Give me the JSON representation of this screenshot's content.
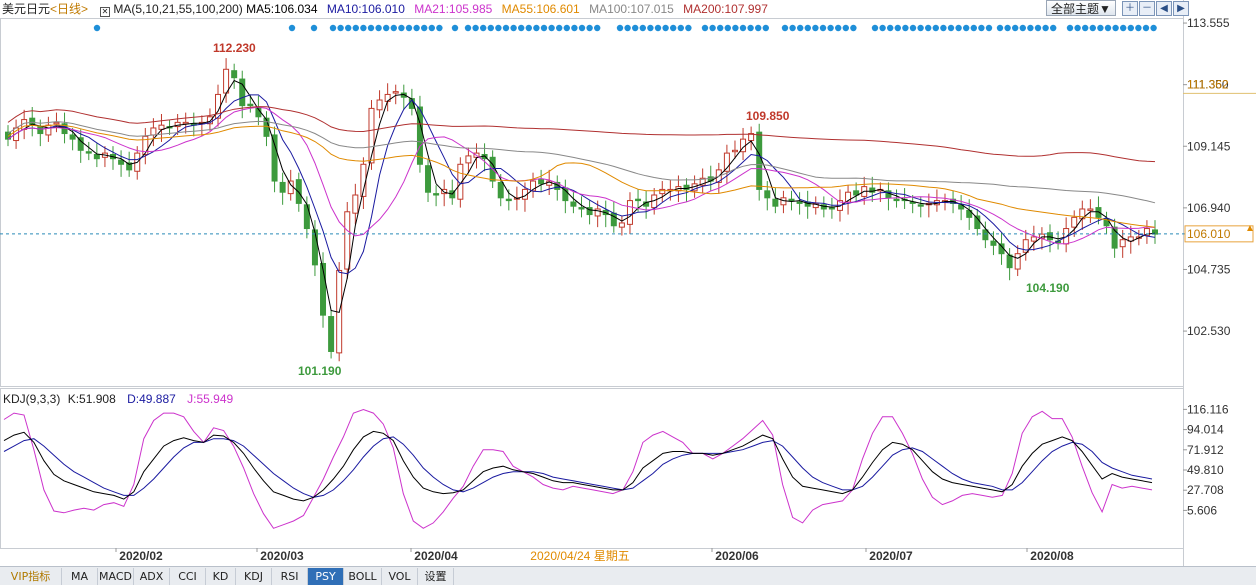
{
  "header": {
    "symbol": "美元日元",
    "period": "<日线>",
    "ma_label": "MA(5,10,21,55,100,200)",
    "ma5": "MA5:106.034",
    "ma10": "MA10:106.010",
    "ma21": "MA21:105.985",
    "ma55": "MA55:106.601",
    "ma100": "MA100:107.015",
    "ma200": "MA200:107.997",
    "theme_button": "全部主题▼",
    "tool_icons": [
      "zoom-in-icon",
      "zoom-out-icon",
      "pan-left-icon",
      "pan-right-icon"
    ]
  },
  "kdj_header": {
    "label": "KDJ(9,3,3)",
    "k": "K:51.908",
    "d": "D:49.887",
    "j": "J:55.949"
  },
  "colors": {
    "up": "#c0392b",
    "down": "#3d9a3d",
    "ma5": "#000000",
    "ma10": "#000000",
    "ma21": "#cc33cc",
    "ma55": "#e08a00",
    "ma100": "#888888",
    "ma200": "#b03030",
    "dots": "#1f8fd8",
    "price_tag": "#e8a33d",
    "crosshair": "#2a8ab8"
  },
  "tabs": [
    {
      "label": "VIP指标",
      "active": false
    },
    {
      "label": "MA",
      "active": false
    },
    {
      "label": "MACD",
      "active": false
    },
    {
      "label": "ADX",
      "active": false
    },
    {
      "label": "CCI",
      "active": false
    },
    {
      "label": "KD",
      "active": false
    },
    {
      "label": "KDJ",
      "active": false
    },
    {
      "label": "RSI",
      "active": false
    },
    {
      "label": "PSY",
      "active": true
    },
    {
      "label": "BOLL",
      "active": false
    },
    {
      "label": "VOL",
      "active": false
    },
    {
      "label": "设置",
      "active": false
    }
  ],
  "chart_data": [
    {
      "type": "candlestick",
      "title": "美元日元 日线",
      "y_ticks": [
        102.53,
        104.735,
        106.94,
        109.145,
        111.35,
        113.555
      ],
      "ylim": [
        100.6,
        113.7
      ],
      "x_ticks": [
        "2020/02",
        "2020/03",
        "2020/04",
        "2020/06",
        "2020/07",
        "2020/08"
      ],
      "crosshair_label": "2020/04/24 星期五",
      "current_price": "106.010",
      "price_tag_111": "111.362",
      "annotations": [
        {
          "text": "112.230",
          "value": 112.23,
          "kind": "high"
        },
        {
          "text": "101.190",
          "value": 101.19,
          "kind": "low"
        },
        {
          "text": "109.850",
          "value": 109.85,
          "kind": "high"
        },
        {
          "text": "104.190",
          "value": 104.19,
          "kind": "low"
        }
      ],
      "series": [
        {
          "name": "MA5"
        },
        {
          "name": "MA10"
        },
        {
          "name": "MA21"
        },
        {
          "name": "MA55"
        },
        {
          "name": "MA100"
        },
        {
          "name": "MA200"
        }
      ],
      "closes": [
        109.4,
        109.8,
        110.1,
        109.9,
        109.6,
        109.9,
        110.0,
        109.6,
        109.4,
        109.0,
        108.9,
        108.7,
        108.9,
        108.7,
        108.5,
        108.3,
        108.9,
        109.5,
        109.8,
        109.9,
        109.8,
        110.0,
        110.0,
        109.9,
        110.0,
        110.2,
        111.0,
        111.9,
        111.6,
        110.6,
        110.6,
        110.2,
        109.5,
        107.9,
        107.5,
        107.9,
        107.1,
        106.2,
        104.9,
        103.1,
        101.8,
        104.7,
        106.8,
        107.4,
        108.5,
        110.5,
        110.8,
        111.0,
        111.1,
        110.9,
        110.5,
        108.5,
        107.5,
        107.4,
        107.6,
        107.3,
        108.5,
        108.8,
        108.9,
        108.7,
        107.9,
        107.3,
        107.2,
        107.3,
        107.6,
        107.9,
        107.8,
        107.9,
        107.6,
        107.2,
        107.0,
        106.9,
        106.7,
        106.9,
        106.7,
        106.3,
        106.4,
        107.2,
        107.2,
        107.0,
        107.4,
        107.6,
        107.6,
        107.7,
        107.6,
        107.8,
        108.0,
        107.9,
        108.3,
        108.9,
        109.0,
        109.4,
        109.6,
        107.6,
        107.3,
        107.0,
        107.3,
        107.2,
        107.1,
        107.0,
        107.1,
        106.9,
        106.9,
        107.2,
        107.5,
        107.4,
        107.7,
        107.5,
        107.6,
        107.3,
        107.2,
        107.2,
        107.1,
        107.0,
        107.1,
        107.2,
        107.2,
        107.1,
        106.9,
        106.6,
        106.2,
        105.8,
        105.6,
        105.3,
        104.8,
        105.3,
        105.8,
        105.9,
        106.0,
        105.8,
        105.7,
        106.2,
        106.6,
        106.9,
        106.9,
        106.6,
        106.3,
        105.5,
        105.8,
        105.9,
        105.9,
        106.2,
        106.0
      ],
      "kdj": {
        "K": [
          82,
          88,
          91,
          80,
          60,
          45,
          38,
          34,
          30,
          26,
          24,
          22,
          18,
          26,
          48,
          62,
          76,
          82,
          85,
          82,
          80,
          88,
          87,
          80,
          68,
          52,
          38,
          26,
          22,
          18,
          16,
          20,
          28,
          40,
          54,
          72,
          86,
          92,
          90,
          82,
          60,
          42,
          30,
          26,
          24,
          25,
          28,
          38,
          48,
          52,
          54,
          50,
          48,
          46,
          42,
          38,
          36,
          36,
          34,
          32,
          30,
          28,
          28,
          36,
          52,
          60,
          68,
          70,
          70,
          68,
          68,
          66,
          68,
          72,
          76,
          82,
          88,
          84,
          62,
          42,
          32,
          30,
          28,
          26,
          24,
          28,
          42,
          58,
          72,
          80,
          78,
          72,
          60,
          48,
          40,
          36,
          34,
          32,
          30,
          28,
          26,
          34,
          54,
          68,
          78,
          82,
          86,
          82,
          70,
          55,
          40,
          46,
          42,
          40,
          38,
          36
        ],
        "D": [
          70,
          76,
          82,
          84,
          76,
          66,
          56,
          48,
          42,
          36,
          30,
          26,
          22,
          22,
          30,
          40,
          52,
          64,
          74,
          80,
          80,
          84,
          84,
          82,
          76,
          66,
          56,
          46,
          38,
          30,
          24,
          20,
          22,
          28,
          38,
          50,
          64,
          76,
          84,
          86,
          78,
          66,
          52,
          42,
          34,
          28,
          26,
          30,
          36,
          42,
          46,
          48,
          48,
          48,
          46,
          42,
          40,
          38,
          36,
          34,
          32,
          30,
          28,
          30,
          38,
          46,
          56,
          62,
          66,
          68,
          68,
          68,
          68,
          70,
          72,
          76,
          80,
          82,
          76,
          64,
          52,
          42,
          36,
          32,
          28,
          28,
          32,
          42,
          54,
          66,
          72,
          74,
          70,
          62,
          54,
          46,
          40,
          36,
          34,
          32,
          28,
          28,
          36,
          48,
          60,
          70,
          76,
          80,
          78,
          70,
          58,
          52,
          48,
          44,
          42,
          40
        ],
        "J": [
          105,
          112,
          110,
          72,
          28,
          5,
          3,
          6,
          8,
          6,
          12,
          14,
          10,
          34,
          84,
          104,
          112,
          112,
          108,
          92,
          80,
          96,
          93,
          76,
          52,
          24,
          2,
          -14,
          -10,
          -6,
          0,
          20,
          40,
          64,
          86,
          112,
          116,
          112,
          100,
          74,
          24,
          -6,
          -14,
          -8,
          4,
          19,
          32,
          54,
          72,
          72,
          70,
          54,
          48,
          42,
          34,
          30,
          28,
          32,
          30,
          28,
          26,
          24,
          28,
          48,
          80,
          88,
          92,
          86,
          80,
          68,
          68,
          62,
          68,
          76,
          84,
          94,
          104,
          88,
          34,
          -2,
          -8,
          6,
          12,
          14,
          16,
          28,
          62,
          90,
          108,
          108,
          90,
          68,
          40,
          20,
          12,
          16,
          22,
          24,
          22,
          20,
          22,
          46,
          90,
          108,
          114,
          106,
          106,
          86,
          54,
          25,
          4,
          34,
          30,
          32,
          30,
          28
        ]
      },
      "kdj_ticks": [
        5.606,
        27.708,
        49.81,
        71.912,
        94.014,
        116.116
      ]
    }
  ]
}
